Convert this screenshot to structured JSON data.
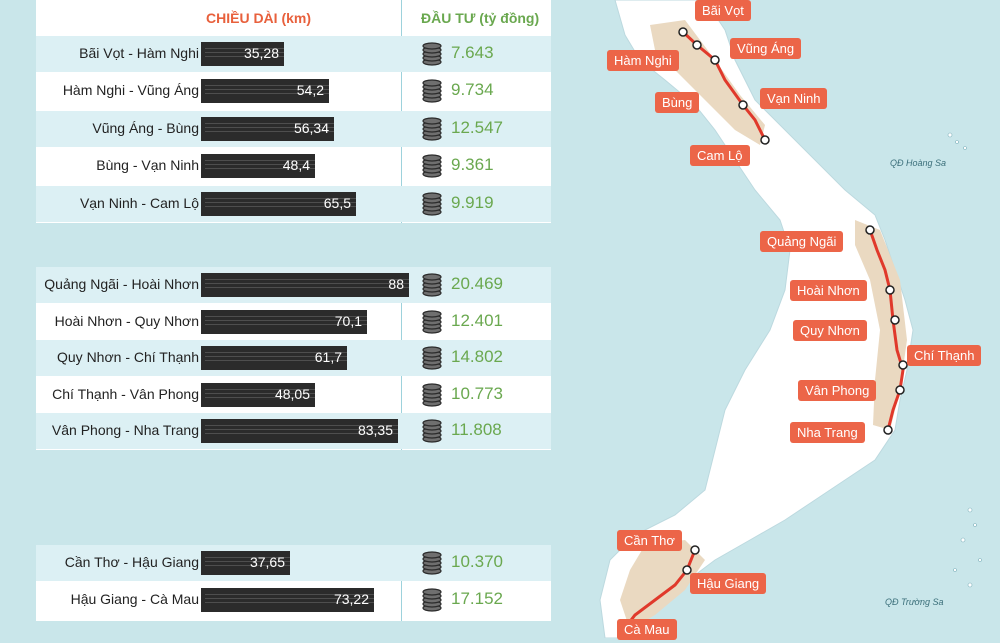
{
  "header": {
    "length_title": "CHIỀU DÀI  (km)",
    "invest_title": "ĐẦU TƯ (tỷ đồng)"
  },
  "chart_data": {
    "type": "bar",
    "groups": [
      {
        "segments": [
          {
            "name": "Bãi Vọt - Hàm Nghi",
            "length": "35,28",
            "length_value": 35.28,
            "investment": "7.643"
          },
          {
            "name": "Hàm Nghi - Vũng Áng",
            "length": "54,2",
            "length_value": 54.2,
            "investment": "9.734"
          },
          {
            "name": "Vũng Áng - Bùng",
            "length": "56,34",
            "length_value": 56.34,
            "investment": "12.547"
          },
          {
            "name": "Bùng - Vạn Ninh",
            "length": "48,4",
            "length_value": 48.4,
            "investment": "9.361"
          },
          {
            "name": "Vạn Ninh - Cam Lộ",
            "length": "65,5",
            "length_value": 65.5,
            "investment": "9.919"
          }
        ]
      },
      {
        "segments": [
          {
            "name": "Quảng Ngãi - Hoài Nhơn",
            "length": "88",
            "length_value": 88,
            "investment": "20.469"
          },
          {
            "name": "Hoài Nhơn - Quy Nhơn",
            "length": "70,1",
            "length_value": 70.1,
            "investment": "12.401"
          },
          {
            "name": "Quy Nhơn - Chí Thạnh",
            "length": "61,7",
            "length_value": 61.7,
            "investment": "14.802"
          },
          {
            "name": "Chí Thạnh - Vân Phong",
            "length": "48,05",
            "length_value": 48.05,
            "investment": "10.773"
          },
          {
            "name": "Vân Phong - Nha Trang",
            "length": "83,35",
            "length_value": 83.35,
            "investment": "11.808"
          }
        ]
      },
      {
        "segments": [
          {
            "name": "Cần Thơ - Hậu Giang",
            "length": "37,65",
            "length_value": 37.65,
            "investment": "10.370"
          },
          {
            "name": "Hậu Giang - Cà Mau",
            "length": "73,22",
            "length_value": 73.22,
            "investment": "17.152"
          }
        ]
      }
    ]
  },
  "map": {
    "places": [
      "Bãi Vọt",
      "Hàm Nghi",
      "Vũng Áng",
      "Bùng",
      "Vạn Ninh",
      "Cam Lộ",
      "Quảng Ngãi",
      "Hoài Nhơn",
      "Quy Nhơn",
      "Chí Thạnh",
      "Vân Phong",
      "Nha Trang",
      "Cần Thơ",
      "Hậu Giang",
      "Cà Mau"
    ],
    "islands": [
      "QĐ Hoàng Sa",
      "QĐ Trường Sa"
    ]
  },
  "colors": {
    "label_bg": "#ec6548",
    "route": "#e0392b",
    "invest": "#6aa84f",
    "header_len": "#e8603c",
    "land": "#ffffff",
    "sea": "#c9e6ea"
  }
}
